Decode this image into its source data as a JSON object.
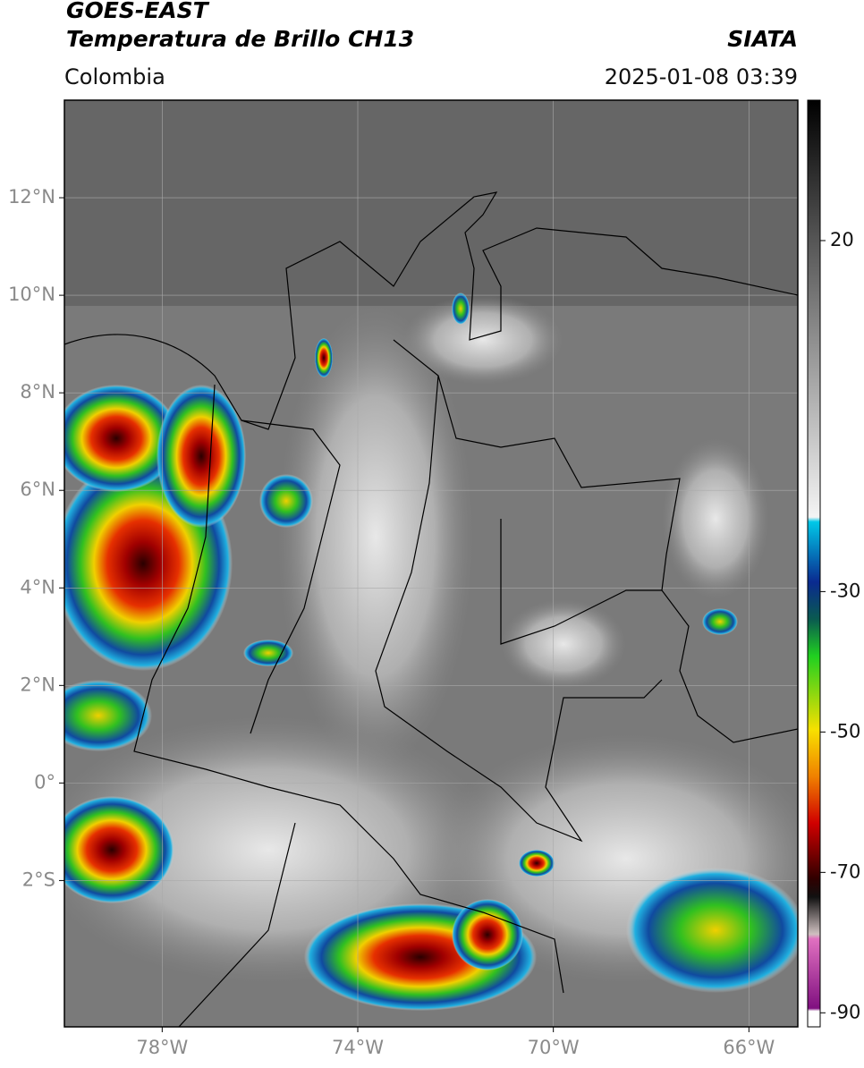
{
  "header": {
    "title": "GOES-EAST",
    "subtitle": "Temperatura de Brillo CH13",
    "region": "Colombia",
    "source": "SIATA",
    "datetime": "2025-01-08 03:39"
  },
  "map": {
    "lon_range": [
      -80,
      -65
    ],
    "lat_range": [
      -5,
      14
    ],
    "grid": true,
    "lat_ticks": [
      {
        "value": 12,
        "label": "12°N"
      },
      {
        "value": 10,
        "label": "10°N"
      },
      {
        "value": 8,
        "label": "8°N"
      },
      {
        "value": 6,
        "label": "6°N"
      },
      {
        "value": 4,
        "label": "4°N"
      },
      {
        "value": 2,
        "label": "2°N"
      },
      {
        "value": 0,
        "label": "0°"
      },
      {
        "value": -2,
        "label": "2°S"
      }
    ],
    "lon_ticks": [
      {
        "value": -78,
        "label": "78°W"
      },
      {
        "value": -74,
        "label": "74°W"
      },
      {
        "value": -70,
        "label": "70°W"
      },
      {
        "value": -66,
        "label": "66°W"
      }
    ]
  },
  "colorbar": {
    "range": [
      -92,
      40
    ],
    "ticks": [
      20,
      -30,
      -50,
      -70,
      -90
    ]
  }
}
